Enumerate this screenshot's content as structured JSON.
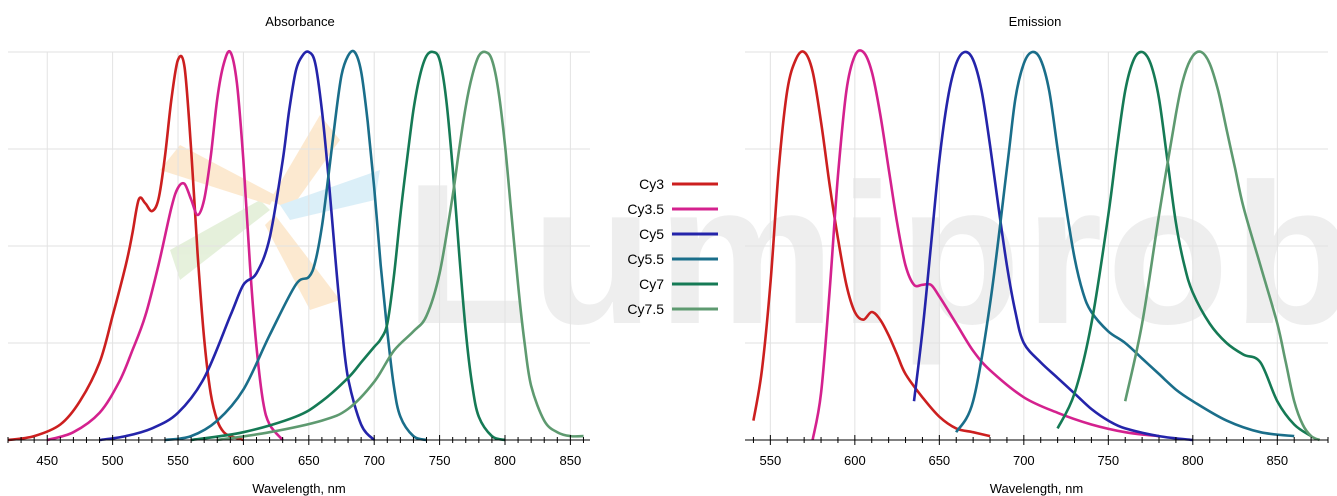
{
  "watermark": {
    "text": "Lumiprobe"
  },
  "legend": {
    "items": [
      {
        "label": "Cy3",
        "color": "#cc1f1f"
      },
      {
        "label": "Cy3.5",
        "color": "#d4218e"
      },
      {
        "label": "Cy5",
        "color": "#2424aa"
      },
      {
        "label": "Cy5.5",
        "color": "#1a6e8a"
      },
      {
        "label": "Cy7",
        "color": "#157a55"
      },
      {
        "label": "Cy7.5",
        "color": "#5e9a70"
      }
    ]
  },
  "chart_data": [
    {
      "type": "line",
      "title": "Absorbance",
      "xlabel": "Wavelength, nm",
      "ylabel": "",
      "xlim": [
        420,
        865
      ],
      "ylim": [
        0,
        1
      ],
      "xticks": [
        450,
        500,
        550,
        600,
        650,
        700,
        750,
        800,
        850
      ],
      "grid": true,
      "legend_position": "center-right",
      "series": [
        {
          "name": "Cy3",
          "color": "#cc1f1f",
          "x": [
            420,
            440,
            460,
            475,
            490,
            500,
            510,
            515,
            520,
            525,
            530,
            535,
            540,
            545,
            550,
            555,
            560,
            565,
            570,
            575,
            580,
            585,
            590,
            600
          ],
          "y": [
            0,
            0.01,
            0.04,
            0.1,
            0.2,
            0.32,
            0.45,
            0.53,
            0.62,
            0.61,
            0.59,
            0.62,
            0.73,
            0.88,
            0.98,
            0.96,
            0.75,
            0.48,
            0.26,
            0.12,
            0.05,
            0.02,
            0.01,
            0
          ]
        },
        {
          "name": "Cy3.5",
          "color": "#d4218e",
          "x": [
            450,
            470,
            490,
            505,
            515,
            525,
            535,
            545,
            550,
            555,
            560,
            565,
            570,
            575,
            580,
            585,
            590,
            595,
            600,
            605,
            610,
            615,
            620,
            630
          ],
          "y": [
            0,
            0.02,
            0.07,
            0.15,
            0.23,
            0.32,
            0.45,
            0.6,
            0.65,
            0.66,
            0.62,
            0.58,
            0.62,
            0.73,
            0.88,
            0.97,
            1.0,
            0.92,
            0.72,
            0.45,
            0.24,
            0.1,
            0.04,
            0
          ]
        },
        {
          "name": "Cy5",
          "color": "#2424aa",
          "x": [
            490,
            510,
            530,
            550,
            570,
            590,
            600,
            610,
            620,
            630,
            635,
            640,
            645,
            650,
            655,
            660,
            665,
            670,
            675,
            680,
            690,
            700
          ],
          "y": [
            0,
            0.01,
            0.03,
            0.07,
            0.16,
            0.32,
            0.4,
            0.43,
            0.52,
            0.72,
            0.85,
            0.95,
            0.99,
            1.0,
            0.97,
            0.85,
            0.68,
            0.48,
            0.3,
            0.16,
            0.04,
            0
          ]
        },
        {
          "name": "Cy5.5",
          "color": "#1a6e8a",
          "x": [
            540,
            560,
            580,
            600,
            620,
            640,
            650,
            655,
            660,
            665,
            670,
            675,
            680,
            685,
            690,
            695,
            700,
            705,
            710,
            715,
            720,
            730,
            740
          ],
          "y": [
            0,
            0.01,
            0.05,
            0.13,
            0.27,
            0.4,
            0.42,
            0.46,
            0.55,
            0.68,
            0.82,
            0.94,
            0.99,
            1.0,
            0.95,
            0.82,
            0.65,
            0.45,
            0.28,
            0.14,
            0.06,
            0.01,
            0
          ]
        },
        {
          "name": "Cy7",
          "color": "#157a55",
          "x": [
            560,
            600,
            640,
            660,
            680,
            690,
            700,
            705,
            710,
            715,
            720,
            725,
            730,
            735,
            740,
            745,
            750,
            755,
            760,
            765,
            770,
            775,
            780,
            790,
            800
          ],
          "y": [
            0,
            0.02,
            0.06,
            0.1,
            0.16,
            0.2,
            0.24,
            0.26,
            0.3,
            0.42,
            0.58,
            0.72,
            0.85,
            0.94,
            0.99,
            1.0,
            0.98,
            0.88,
            0.7,
            0.48,
            0.28,
            0.14,
            0.06,
            0.01,
            0
          ]
        },
        {
          "name": "Cy7.5",
          "color": "#5e9a70",
          "x": [
            580,
            620,
            660,
            680,
            700,
            715,
            730,
            740,
            750,
            760,
            765,
            770,
            775,
            780,
            785,
            790,
            795,
            800,
            805,
            810,
            815,
            820,
            830,
            840,
            850,
            860
          ],
          "y": [
            0,
            0.02,
            0.05,
            0.08,
            0.15,
            0.23,
            0.28,
            0.32,
            0.43,
            0.63,
            0.75,
            0.86,
            0.94,
            0.99,
            1.0,
            0.98,
            0.9,
            0.76,
            0.58,
            0.4,
            0.25,
            0.14,
            0.05,
            0.02,
            0.01,
            0.01
          ]
        }
      ]
    },
    {
      "type": "line",
      "title": "Emission",
      "xlabel": "Wavelength, nm",
      "ylabel": "",
      "xlim": [
        535,
        880
      ],
      "ylim": [
        0,
        1
      ],
      "xticks": [
        550,
        600,
        650,
        700,
        750,
        800,
        850
      ],
      "grid": true,
      "legend_position": "center-left",
      "series": [
        {
          "name": "Cy3",
          "color": "#cc1f1f",
          "x": [
            540,
            545,
            550,
            555,
            560,
            565,
            570,
            575,
            580,
            585,
            590,
            595,
            600,
            605,
            610,
            615,
            620,
            625,
            630,
            640,
            650,
            660,
            670,
            680
          ],
          "y": [
            0.05,
            0.18,
            0.4,
            0.7,
            0.9,
            0.98,
            1.0,
            0.95,
            0.82,
            0.66,
            0.52,
            0.4,
            0.33,
            0.31,
            0.33,
            0.31,
            0.27,
            0.22,
            0.17,
            0.11,
            0.06,
            0.03,
            0.02,
            0.01
          ]
        },
        {
          "name": "Cy3.5",
          "color": "#d4218e",
          "x": [
            575,
            580,
            585,
            590,
            595,
            600,
            605,
            610,
            615,
            620,
            625,
            630,
            635,
            640,
            645,
            650,
            660,
            670,
            680,
            700,
            720,
            740,
            760,
            780
          ],
          "y": [
            0,
            0.12,
            0.38,
            0.68,
            0.9,
            0.99,
            1.0,
            0.95,
            0.84,
            0.7,
            0.56,
            0.45,
            0.4,
            0.4,
            0.4,
            0.37,
            0.3,
            0.23,
            0.18,
            0.11,
            0.07,
            0.04,
            0.02,
            0.01
          ]
        },
        {
          "name": "Cy5",
          "color": "#2424aa",
          "x": [
            635,
            640,
            645,
            650,
            655,
            660,
            665,
            670,
            675,
            680,
            685,
            690,
            695,
            700,
            710,
            720,
            730,
            740,
            750,
            760,
            780,
            800
          ],
          "y": [
            0.1,
            0.28,
            0.5,
            0.72,
            0.88,
            0.97,
            1.0,
            0.98,
            0.9,
            0.76,
            0.6,
            0.45,
            0.33,
            0.25,
            0.2,
            0.16,
            0.12,
            0.08,
            0.05,
            0.03,
            0.01,
            0
          ]
        },
        {
          "name": "Cy5.5",
          "color": "#1a6e8a",
          "x": [
            660,
            670,
            680,
            690,
            695,
            700,
            705,
            710,
            715,
            720,
            725,
            730,
            735,
            740,
            750,
            760,
            770,
            780,
            790,
            800,
            820,
            840,
            860
          ],
          "y": [
            0.02,
            0.1,
            0.35,
            0.7,
            0.88,
            0.97,
            1.0,
            0.98,
            0.9,
            0.75,
            0.6,
            0.47,
            0.38,
            0.33,
            0.28,
            0.25,
            0.21,
            0.17,
            0.13,
            0.1,
            0.05,
            0.02,
            0.01
          ]
        },
        {
          "name": "Cy7",
          "color": "#157a55",
          "x": [
            720,
            730,
            740,
            750,
            755,
            760,
            765,
            770,
            775,
            780,
            785,
            790,
            795,
            800,
            810,
            820,
            830,
            840,
            850,
            860,
            870
          ],
          "y": [
            0.03,
            0.12,
            0.3,
            0.58,
            0.75,
            0.9,
            0.98,
            1.0,
            0.97,
            0.88,
            0.72,
            0.56,
            0.45,
            0.38,
            0.3,
            0.25,
            0.22,
            0.2,
            0.1,
            0.04,
            0.01
          ]
        },
        {
          "name": "Cy7.5",
          "color": "#5e9a70",
          "x": [
            760,
            770,
            780,
            790,
            795,
            800,
            805,
            810,
            815,
            820,
            825,
            830,
            840,
            850,
            855,
            860,
            865,
            870,
            875
          ],
          "y": [
            0.1,
            0.3,
            0.58,
            0.84,
            0.94,
            0.99,
            1.0,
            0.97,
            0.9,
            0.8,
            0.7,
            0.6,
            0.45,
            0.3,
            0.2,
            0.1,
            0.04,
            0.01,
            0
          ]
        }
      ]
    }
  ]
}
